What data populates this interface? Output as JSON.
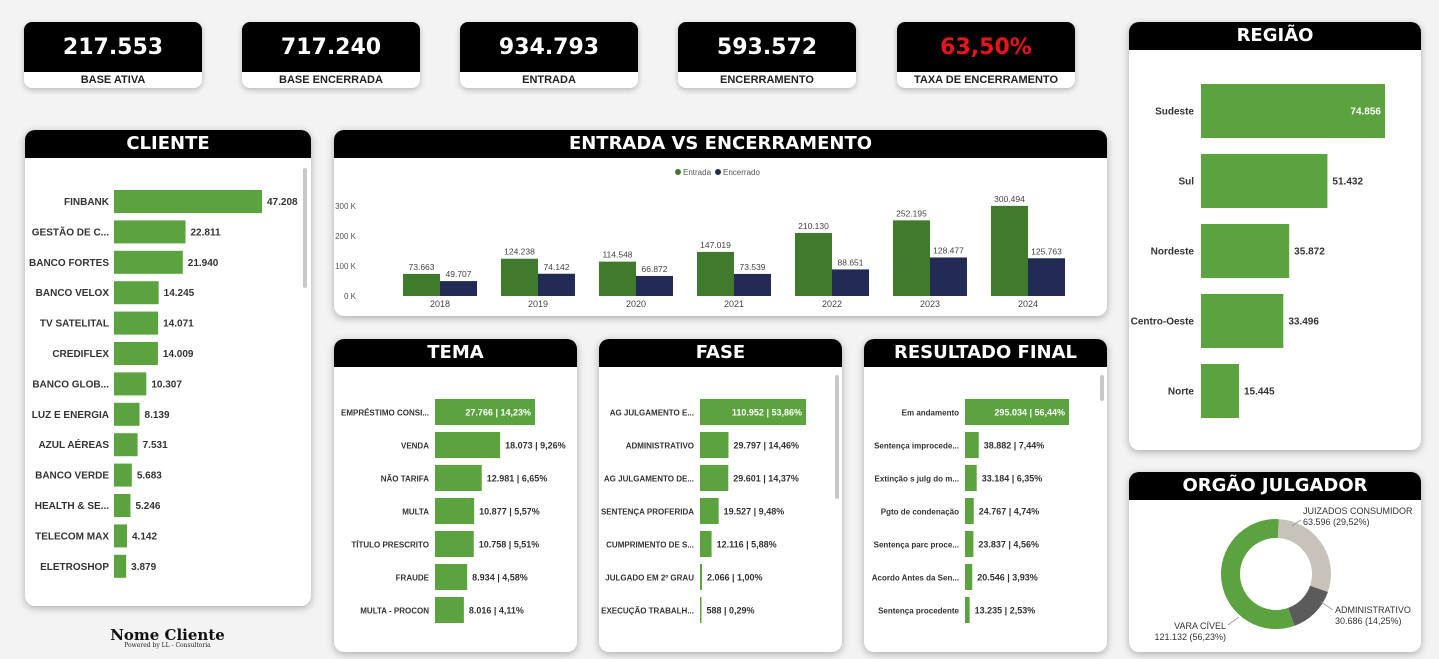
{
  "kpis": [
    {
      "value": "217.553",
      "label": "BASE ATIVA",
      "color": "#ffffff"
    },
    {
      "value": "717.240",
      "label": "BASE ENCERRADA",
      "color": "#ffffff"
    },
    {
      "value": "934.793",
      "label": "ENTRADA",
      "color": "#ffffff"
    },
    {
      "value": "593.572",
      "label": "ENCERRAMENTO",
      "color": "#ffffff"
    },
    {
      "value": "63,50%",
      "label": "TAXA DE ENCERRAMENTO",
      "color": "#e8141c"
    }
  ],
  "colors": {
    "green": "#5aa33f",
    "darkgreen": "#3f7a2d",
    "navy": "#222b55"
  },
  "brand": {
    "name": "Nome Cliente",
    "powered": "Powered by LL - Consultoria"
  },
  "chart_data": [
    {
      "type": "bar",
      "orientation": "horizontal",
      "title": "CLIENTE",
      "categories": [
        "FINBANK",
        "GESTÃO DE C...",
        "BANCO FORTES",
        "BANCO VELOX",
        "TV SATELITAL",
        "CREDIFLEX",
        "BANCO GLOB...",
        "LUZ E ENERGIA",
        "AZUL AÉREAS",
        "BANCO VERDE",
        "HEALTH & SE...",
        "TELECOM MAX",
        "ELETROSHOP"
      ],
      "values": [
        47208,
        22811,
        21940,
        14245,
        14071,
        14009,
        10307,
        8139,
        7531,
        5683,
        5246,
        4142,
        3879
      ],
      "labels": [
        "47.208",
        "22.811",
        "21.940",
        "14.245",
        "14.071",
        "14.009",
        "10.307",
        "8.139",
        "7.531",
        "5.683",
        "5.246",
        "4.142",
        "3.879"
      ]
    },
    {
      "type": "bar",
      "title": "ENTRADA VS ENCERRAMENTO",
      "categories": [
        "2018",
        "2019",
        "2020",
        "2021",
        "2022",
        "2023",
        "2024"
      ],
      "series": [
        {
          "name": "Entrada",
          "values": [
            73663,
            124238,
            114548,
            147019,
            210130,
            252195,
            300494
          ],
          "labels": [
            "73.663",
            "124.238",
            "114.548",
            "147.019",
            "210.130",
            "252.195",
            "300.494"
          ]
        },
        {
          "name": "Encerrado",
          "values": [
            49707,
            74142,
            66872,
            73539,
            88651,
            128477,
            125763
          ],
          "labels": [
            "49.707",
            "74.142",
            "66.872",
            "73.539",
            "88.651",
            "128.477",
            "125.763"
          ]
        }
      ],
      "ylim": [
        0,
        300000
      ],
      "yticks": [
        {
          "v": 0,
          "t": "0 K"
        },
        {
          "v": 100000,
          "t": "100 K"
        },
        {
          "v": 200000,
          "t": "200 K"
        },
        {
          "v": 300000,
          "t": "300 K"
        }
      ],
      "legend": "top-center"
    },
    {
      "type": "bar",
      "orientation": "horizontal",
      "title": "TEMA",
      "categories": [
        "EMPRÉSTIMO CONSI...",
        "VENDA",
        "NÃO TARIFA",
        "MULTA",
        "TÍTULO PRESCRITO",
        "FRAUDE",
        "MULTA - PROCON"
      ],
      "values": [
        27766,
        18073,
        12981,
        10877,
        10758,
        8934,
        8016
      ],
      "labels": [
        "27.766 | 14,23%",
        "18.073 | 9,26%",
        "12.981 | 6,65%",
        "10.877 | 5,57%",
        "10.758 | 5,51%",
        "8.934 | 4,58%",
        "8.016 | 4,11%"
      ]
    },
    {
      "type": "bar",
      "orientation": "horizontal",
      "title": "FASE",
      "categories": [
        "AG JULGAMENTO E...",
        "ADMINISTRATIVO",
        "AG JULGAMENTO DE...",
        "SENTENÇA PROFERIDA",
        "CUMPRIMENTO DE S...",
        "JULGADO EM 2º GRAU",
        "EXECUÇÃO TRABALH..."
      ],
      "values": [
        110952,
        29797,
        29601,
        19527,
        12116,
        2066,
        588
      ],
      "labels": [
        "110.952 | 53,86%",
        "29.797 | 14,46%",
        "29.601 | 14,37%",
        "19.527 | 9,48%",
        "12.116 | 5,88%",
        "2.066 | 1,00%",
        "588 | 0,29%"
      ]
    },
    {
      "type": "bar",
      "orientation": "horizontal",
      "title": "RESULTADO FINAL",
      "categories": [
        "Em andamento",
        "Sentença improcede...",
        "Extinção s julg do m...",
        "Pgto de condenação",
        "Sentença parc proce...",
        "Acordo Antes da Sen...",
        "Sentença procedente"
      ],
      "values": [
        295034,
        38882,
        33184,
        24767,
        23837,
        20546,
        13235
      ],
      "labels": [
        "295.034 | 56,44%",
        "38.882 | 7,44%",
        "33.184 | 6,35%",
        "24.767 | 4,74%",
        "23.837 | 4,56%",
        "20.546 | 3,93%",
        "13.235 | 2,53%"
      ]
    },
    {
      "type": "bar",
      "orientation": "horizontal",
      "title": "REGIÃO",
      "categories": [
        "Sudeste",
        "Sul",
        "Nordeste",
        "Centro-Oeste",
        "Norte"
      ],
      "values": [
        74856,
        51432,
        35872,
        33496,
        15445
      ],
      "labels": [
        "74.856",
        "51.432",
        "35.872",
        "33.496",
        "15.445"
      ]
    },
    {
      "type": "pie",
      "title": "ORGÃO JULGADOR",
      "categories": [
        "JUIZADOS CONSUMIDOR",
        "ADMINISTRATIVO",
        "VARA CÍVEL"
      ],
      "values": [
        63596,
        30686,
        121132
      ],
      "labels": [
        "63.596 (29,52%)",
        "30.686 (14,25%)",
        "121.132 (56,23%)"
      ],
      "colors": [
        "#c9c2bb",
        "#5b5b5b",
        "#5aa33f"
      ]
    }
  ]
}
